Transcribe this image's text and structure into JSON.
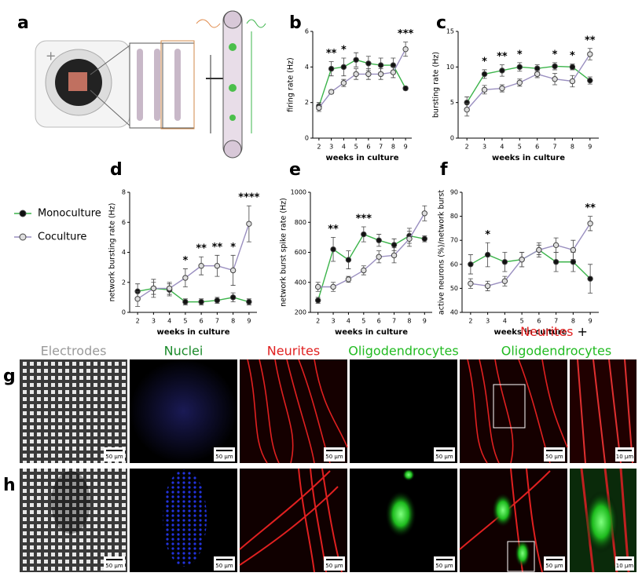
{
  "panel_a": {
    "label": "a"
  },
  "chart_data": [
    {
      "type": "line",
      "panel_label": "b",
      "ylabel": "firing rate (Hz)",
      "xlabel": "weeks in culture",
      "categories": [
        "2",
        "3",
        "4",
        "5",
        "6",
        "7",
        "8",
        "9"
      ],
      "ylim": [
        0,
        6
      ],
      "yticks": [
        0,
        2,
        4,
        6
      ],
      "series": [
        {
          "name": "Monoculture",
          "color": "#3cb44b",
          "marker_color": "#111111",
          "values": [
            1.8,
            3.9,
            4.0,
            4.4,
            4.2,
            4.1,
            4.1,
            2.8
          ],
          "errors": [
            0.2,
            0.4,
            0.5,
            0.4,
            0.4,
            0.4,
            0.4,
            0.1
          ]
        },
        {
          "name": "Coculture",
          "color": "#9a8fc0",
          "marker_color": "#dddddd",
          "values": [
            1.7,
            2.6,
            3.1,
            3.6,
            3.6,
            3.6,
            3.7,
            5.0
          ],
          "errors": [
            0.2,
            0.1,
            0.2,
            0.3,
            0.3,
            0.3,
            0.3,
            0.4
          ]
        }
      ],
      "annotations": [
        {
          "x": "3",
          "text": "**"
        },
        {
          "x": "4",
          "text": "*"
        },
        {
          "x": "9",
          "text": "***"
        }
      ]
    },
    {
      "type": "line",
      "panel_label": "c",
      "ylabel": "bursting rate (Hz)",
      "xlabel": "weeks in culture",
      "categories": [
        "2",
        "3",
        "4",
        "5",
        "6",
        "7",
        "8",
        "9"
      ],
      "ylim": [
        0,
        15
      ],
      "yticks": [
        0,
        5,
        10,
        15
      ],
      "series": [
        {
          "color": "#3cb44b",
          "marker_color": "#111111",
          "values": [
            5.0,
            9.0,
            9.5,
            10.0,
            9.8,
            10.1,
            10.0,
            8.1
          ],
          "errors": [
            0.8,
            0.6,
            0.8,
            0.6,
            0.5,
            0.5,
            0.4,
            0.5
          ]
        },
        {
          "color": "#9a8fc0",
          "marker_color": "#dddddd",
          "values": [
            4.0,
            6.8,
            7.0,
            7.8,
            9.0,
            8.3,
            8.0,
            11.8
          ],
          "errors": [
            0.9,
            0.6,
            0.5,
            0.5,
            0.5,
            0.8,
            0.8,
            0.8
          ]
        }
      ],
      "annotations": [
        {
          "x": "3",
          "text": "*"
        },
        {
          "x": "4",
          "text": "**"
        },
        {
          "x": "5",
          "text": "*"
        },
        {
          "x": "7",
          "text": "*"
        },
        {
          "x": "8",
          "text": "*"
        },
        {
          "x": "9",
          "text": "**"
        }
      ]
    },
    {
      "type": "line",
      "panel_label": "d",
      "ylabel": "network bursting rate (Hz)",
      "xlabel": "weeks in culture",
      "categories": [
        "2",
        "3",
        "4",
        "5",
        "6",
        "7",
        "8",
        "9"
      ],
      "ylim": [
        0,
        8
      ],
      "yticks": [
        0,
        2,
        4,
        6,
        8
      ],
      "series": [
        {
          "color": "#3cb44b",
          "marker_color": "#111111",
          "values": [
            1.4,
            1.6,
            1.5,
            0.7,
            0.7,
            0.8,
            1.0,
            0.7
          ],
          "errors": [
            0.5,
            0.4,
            0.4,
            0.2,
            0.2,
            0.2,
            0.3,
            0.2
          ]
        },
        {
          "color": "#9a8fc0",
          "marker_color": "#dddddd",
          "values": [
            0.9,
            1.6,
            1.6,
            2.3,
            3.1,
            3.1,
            2.8,
            5.9
          ],
          "errors": [
            0.5,
            0.6,
            0.4,
            0.6,
            0.6,
            0.7,
            1.0,
            1.2
          ]
        }
      ],
      "annotations": [
        {
          "x": "5",
          "text": "*"
        },
        {
          "x": "6",
          "text": "**"
        },
        {
          "x": "7",
          "text": "**"
        },
        {
          "x": "8",
          "text": "*"
        },
        {
          "x": "9",
          "text": "****"
        }
      ]
    },
    {
      "type": "line",
      "panel_label": "e",
      "ylabel": "network burst spike rate (Hz)",
      "xlabel": "weeks in culture",
      "categories": [
        "2",
        "3",
        "4",
        "5",
        "6",
        "7",
        "8",
        "9"
      ],
      "ylim": [
        200,
        1000
      ],
      "yticks": [
        200,
        400,
        600,
        800,
        1000
      ],
      "series": [
        {
          "color": "#3cb44b",
          "marker_color": "#111111",
          "values": [
            280,
            620,
            550,
            720,
            680,
            650,
            710,
            690
          ],
          "errors": [
            20,
            80,
            60,
            50,
            40,
            40,
            50,
            20
          ]
        },
        {
          "color": "#9a8fc0",
          "marker_color": "#dddddd",
          "values": [
            370,
            370,
            420,
            480,
            570,
            580,
            690,
            860
          ],
          "errors": [
            30,
            30,
            20,
            30,
            40,
            50,
            50,
            50
          ]
        }
      ],
      "annotations": [
        {
          "x": "3",
          "text": "**"
        },
        {
          "x": "5",
          "text": "***"
        }
      ]
    },
    {
      "type": "line",
      "panel_label": "f",
      "ylabel": "active neurons (%)/network burst",
      "xlabel": "weeks in culture",
      "categories": [
        "2",
        "3",
        "4",
        "5",
        "6",
        "7",
        "8",
        "9"
      ],
      "ylim": [
        40,
        90
      ],
      "yticks": [
        40,
        50,
        60,
        70,
        80,
        90
      ],
      "series": [
        {
          "color": "#3cb44b",
          "marker_color": "#111111",
          "values": [
            60,
            64,
            61,
            62,
            66,
            61,
            61,
            54
          ],
          "errors": [
            4,
            5,
            4,
            3,
            3,
            4,
            4,
            6
          ]
        },
        {
          "color": "#9a8fc0",
          "marker_color": "#dddddd",
          "values": [
            52,
            51,
            53,
            62,
            66,
            68,
            66,
            77
          ],
          "errors": [
            2,
            2,
            2,
            3,
            2,
            3,
            4,
            3
          ]
        }
      ],
      "annotations": [
        {
          "x": "3",
          "text": "*"
        },
        {
          "x": "9",
          "text": "**"
        }
      ]
    }
  ],
  "micrographs": {
    "headers": [
      "Electrodes",
      "Nuclei",
      "Neurites",
      "Oligodendrocytes"
    ],
    "merged_header": [
      "Neurites",
      "+",
      "Oligodendrocytes"
    ],
    "rows": [
      {
        "label": "g",
        "scale_bars": [
          "50 µm",
          "50 µm",
          "50 µm",
          "50 µm",
          "50 µm",
          "10 µm"
        ]
      },
      {
        "label": "h",
        "scale_bars": [
          "50 µm",
          "50 µm",
          "50 µm",
          "50 µm",
          "50 µm",
          "10 µm"
        ]
      }
    ]
  }
}
